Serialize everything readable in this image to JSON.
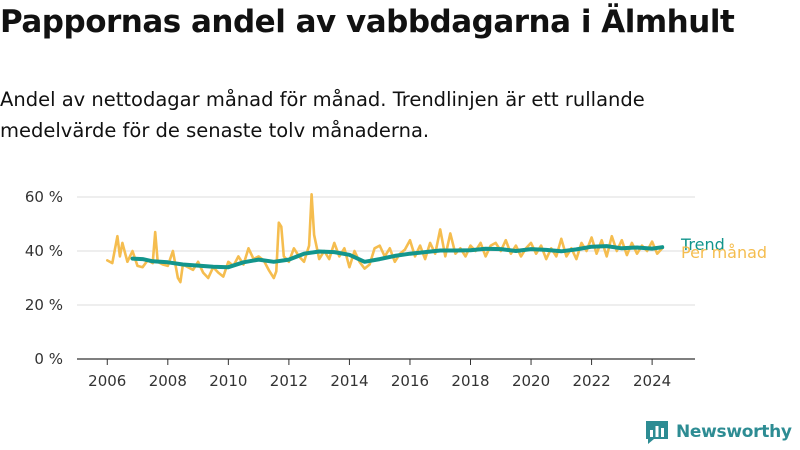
{
  "title": "Pappornas andel av vabbdagarna i Älmhult",
  "subtitle": "Andel av nettodagar månad för månad. Trendlinjen är ett rullande medelvärde för de senaste tolv månaderna.",
  "brand": {
    "name": "Newsworthy",
    "icon": "bar-chart-logo-icon",
    "color": "#2d8c93"
  },
  "chart_data": {
    "type": "line",
    "title": "",
    "xlabel": "",
    "ylabel": "",
    "x_ticks": [
      "2006",
      "2008",
      "2010",
      "2012",
      "2014",
      "2016",
      "2018",
      "2020",
      "2022",
      "2024"
    ],
    "y_ticks": [
      "0 %",
      "20 %",
      "40 %",
      "60 %"
    ],
    "ylim": [
      0,
      60
    ],
    "xlim": [
      "2005-01",
      "2025-06"
    ],
    "grid": "horizontal",
    "legend": "inline-right",
    "series": [
      {
        "name": "Trend",
        "color": "#12958c",
        "points": [
          [
            "2006-11",
            37.2
          ],
          [
            "2007-03",
            37.0
          ],
          [
            "2007-07",
            36.2
          ],
          [
            "2008-01",
            35.8
          ],
          [
            "2008-07",
            35.0
          ],
          [
            "2009-01",
            34.6
          ],
          [
            "2009-07",
            34.2
          ],
          [
            "2010-01",
            34.0
          ],
          [
            "2010-07",
            35.8
          ],
          [
            "2011-01",
            36.8
          ],
          [
            "2011-07",
            36.0
          ],
          [
            "2012-01",
            36.8
          ],
          [
            "2012-07",
            39.0
          ],
          [
            "2013-01",
            39.8
          ],
          [
            "2013-07",
            39.6
          ],
          [
            "2014-01",
            38.6
          ],
          [
            "2014-07",
            36.0
          ],
          [
            "2015-01",
            37.0
          ],
          [
            "2015-07",
            38.2
          ],
          [
            "2016-01",
            39.0
          ],
          [
            "2016-07",
            39.6
          ],
          [
            "2017-01",
            40.2
          ],
          [
            "2017-07",
            40.2
          ],
          [
            "2018-01",
            40.3
          ],
          [
            "2018-07",
            40.8
          ],
          [
            "2019-01",
            40.7
          ],
          [
            "2019-07",
            40.0
          ],
          [
            "2020-01",
            40.7
          ],
          [
            "2020-07",
            40.4
          ],
          [
            "2021-01",
            39.9
          ],
          [
            "2021-07",
            40.6
          ],
          [
            "2022-01",
            41.6
          ],
          [
            "2022-07",
            41.8
          ],
          [
            "2023-01",
            41.0
          ],
          [
            "2023-07",
            41.3
          ],
          [
            "2024-01",
            40.9
          ],
          [
            "2024-05",
            41.4
          ]
        ]
      },
      {
        "name": "Per månad",
        "color": "#f5bd4f",
        "points": [
          [
            "2006-01",
            36.5
          ],
          [
            "2006-03",
            35.5
          ],
          [
            "2006-05",
            45.5
          ],
          [
            "2006-06",
            38.0
          ],
          [
            "2006-07",
            43.0
          ],
          [
            "2006-09",
            36.0
          ],
          [
            "2006-11",
            40.0
          ],
          [
            "2007-01",
            34.5
          ],
          [
            "2007-03",
            34.0
          ],
          [
            "2007-05",
            36.5
          ],
          [
            "2007-07",
            35.5
          ],
          [
            "2007-08",
            47.0
          ],
          [
            "2007-09",
            36.0
          ],
          [
            "2007-11",
            35.0
          ],
          [
            "2008-01",
            34.5
          ],
          [
            "2008-03",
            40.0
          ],
          [
            "2008-05",
            30.0
          ],
          [
            "2008-06",
            28.5
          ],
          [
            "2008-07",
            35.0
          ],
          [
            "2008-09",
            34.0
          ],
          [
            "2008-11",
            33.0
          ],
          [
            "2009-01",
            36.0
          ],
          [
            "2009-03",
            32.0
          ],
          [
            "2009-05",
            30.0
          ],
          [
            "2009-07",
            34.0
          ],
          [
            "2009-09",
            32.0
          ],
          [
            "2009-11",
            30.5
          ],
          [
            "2010-01",
            36.0
          ],
          [
            "2010-03",
            34.5
          ],
          [
            "2010-05",
            38.0
          ],
          [
            "2010-07",
            35.0
          ],
          [
            "2010-09",
            41.0
          ],
          [
            "2010-11",
            37.0
          ],
          [
            "2011-01",
            38.0
          ],
          [
            "2011-03",
            36.5
          ],
          [
            "2011-05",
            33.0
          ],
          [
            "2011-07",
            30.0
          ],
          [
            "2011-08",
            32.5
          ],
          [
            "2011-09",
            50.5
          ],
          [
            "2011-10",
            49.0
          ],
          [
            "2011-11",
            38.0
          ],
          [
            "2012-01",
            36.0
          ],
          [
            "2012-03",
            41.0
          ],
          [
            "2012-05",
            38.0
          ],
          [
            "2012-07",
            36.0
          ],
          [
            "2012-09",
            42.0
          ],
          [
            "2012-10",
            61.0
          ],
          [
            "2012-11",
            46.0
          ],
          [
            "2013-01",
            37.0
          ],
          [
            "2013-03",
            40.0
          ],
          [
            "2013-05",
            37.0
          ],
          [
            "2013-07",
            43.0
          ],
          [
            "2013-09",
            38.0
          ],
          [
            "2013-11",
            41.0
          ],
          [
            "2014-01",
            34.0
          ],
          [
            "2014-03",
            40.0
          ],
          [
            "2014-05",
            36.0
          ],
          [
            "2014-07",
            33.5
          ],
          [
            "2014-09",
            35.0
          ],
          [
            "2014-11",
            41.0
          ],
          [
            "2015-01",
            42.0
          ],
          [
            "2015-03",
            38.0
          ],
          [
            "2015-05",
            41.0
          ],
          [
            "2015-07",
            36.0
          ],
          [
            "2015-09",
            39.0
          ],
          [
            "2015-11",
            40.5
          ],
          [
            "2016-01",
            44.0
          ],
          [
            "2016-03",
            38.0
          ],
          [
            "2016-05",
            42.0
          ],
          [
            "2016-07",
            37.0
          ],
          [
            "2016-09",
            43.0
          ],
          [
            "2016-11",
            39.0
          ],
          [
            "2017-01",
            48.0
          ],
          [
            "2017-03",
            38.0
          ],
          [
            "2017-05",
            46.5
          ],
          [
            "2017-07",
            39.0
          ],
          [
            "2017-09",
            41.0
          ],
          [
            "2017-11",
            38.0
          ],
          [
            "2018-01",
            42.0
          ],
          [
            "2018-03",
            40.0
          ],
          [
            "2018-05",
            43.0
          ],
          [
            "2018-07",
            38.0
          ],
          [
            "2018-09",
            42.0
          ],
          [
            "2018-11",
            43.0
          ],
          [
            "2019-01",
            40.0
          ],
          [
            "2019-03",
            44.0
          ],
          [
            "2019-05",
            39.0
          ],
          [
            "2019-07",
            42.0
          ],
          [
            "2019-09",
            38.0
          ],
          [
            "2019-11",
            41.0
          ],
          [
            "2020-01",
            43.0
          ],
          [
            "2020-03",
            39.0
          ],
          [
            "2020-05",
            42.0
          ],
          [
            "2020-07",
            37.0
          ],
          [
            "2020-09",
            41.0
          ],
          [
            "2020-11",
            38.0
          ],
          [
            "2021-01",
            44.5
          ],
          [
            "2021-03",
            38.0
          ],
          [
            "2021-05",
            41.0
          ],
          [
            "2021-07",
            37.0
          ],
          [
            "2021-09",
            43.0
          ],
          [
            "2021-11",
            40.0
          ],
          [
            "2022-01",
            45.0
          ],
          [
            "2022-03",
            39.0
          ],
          [
            "2022-05",
            44.0
          ],
          [
            "2022-07",
            38.0
          ],
          [
            "2022-09",
            45.5
          ],
          [
            "2022-11",
            40.0
          ],
          [
            "2023-01",
            44.0
          ],
          [
            "2023-03",
            38.5
          ],
          [
            "2023-05",
            43.0
          ],
          [
            "2023-07",
            39.0
          ],
          [
            "2023-09",
            42.0
          ],
          [
            "2023-11",
            40.0
          ],
          [
            "2024-01",
            43.5
          ],
          [
            "2024-03",
            39.0
          ],
          [
            "2024-05",
            41.0
          ]
        ]
      }
    ]
  }
}
